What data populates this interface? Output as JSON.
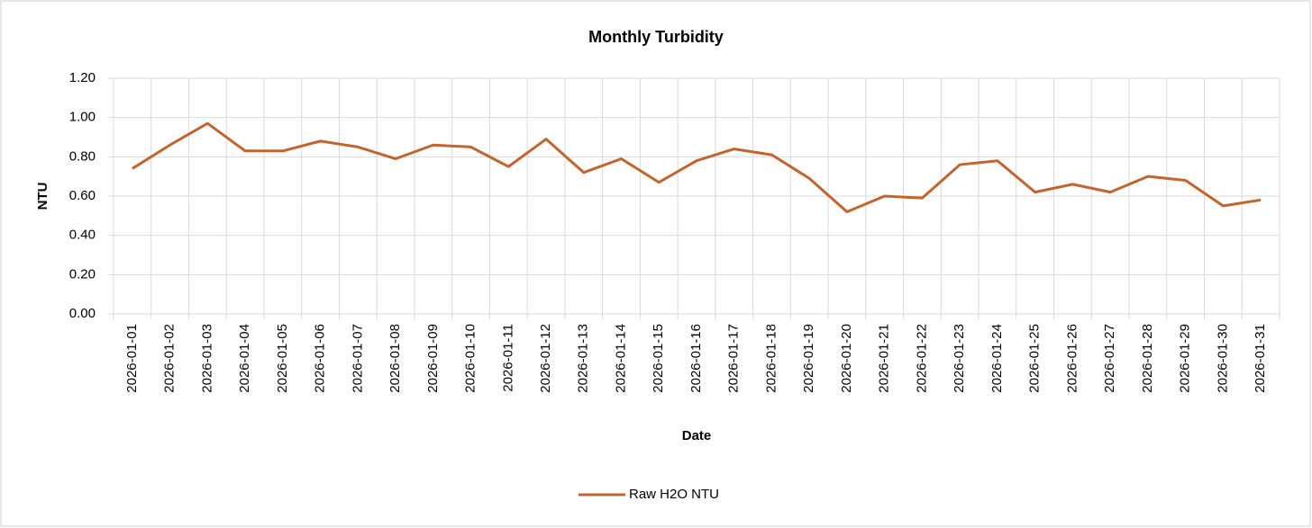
{
  "chart_data": {
    "type": "line",
    "title": "Monthly Turbidity",
    "y_label": "NTU",
    "x_label": "Date",
    "categories": [
      "2026-01-01",
      "2026-01-02",
      "2026-01-03",
      "2026-01-04",
      "2026-01-05",
      "2026-01-06",
      "2026-01-07",
      "2026-01-08",
      "2026-01-09",
      "2026-01-10",
      "2026-01-11",
      "2026-01-12",
      "2026-01-13",
      "2026-01-14",
      "2026-01-15",
      "2026-01-16",
      "2026-01-17",
      "2026-01-18",
      "2026-01-19",
      "2026-01-20",
      "2026-01-21",
      "2026-01-22",
      "2026-01-23",
      "2026-01-24",
      "2026-01-25",
      "2026-01-26",
      "2026-01-27",
      "2026-01-28",
      "2026-01-29",
      "2026-01-30",
      "2026-01-31"
    ],
    "series": [
      {
        "name": "Raw H2O NTU",
        "color": "#c0652d",
        "values": [
          0.74,
          0.86,
          0.97,
          0.83,
          0.83,
          0.88,
          0.85,
          0.79,
          0.86,
          0.85,
          0.75,
          0.89,
          0.72,
          0.79,
          0.67,
          0.78,
          0.84,
          0.81,
          0.69,
          0.52,
          0.6,
          0.59,
          0.76,
          0.78,
          0.62,
          0.66,
          0.62,
          0.7,
          0.68,
          0.55,
          0.58
        ]
      }
    ],
    "ylim": [
      0,
      1.2
    ],
    "yticks": [
      {
        "value": 0,
        "label": "0.00"
      },
      {
        "value": 0.2,
        "label": "0.20"
      },
      {
        "value": 0.4,
        "label": "0.40"
      },
      {
        "value": 0.6,
        "label": "0.60"
      },
      {
        "value": 0.8,
        "label": "0.80"
      },
      {
        "value": 1.0,
        "label": "1.00"
      },
      {
        "value": 1.2,
        "label": "1.20"
      }
    ],
    "grid": true,
    "legend": "bottom"
  }
}
